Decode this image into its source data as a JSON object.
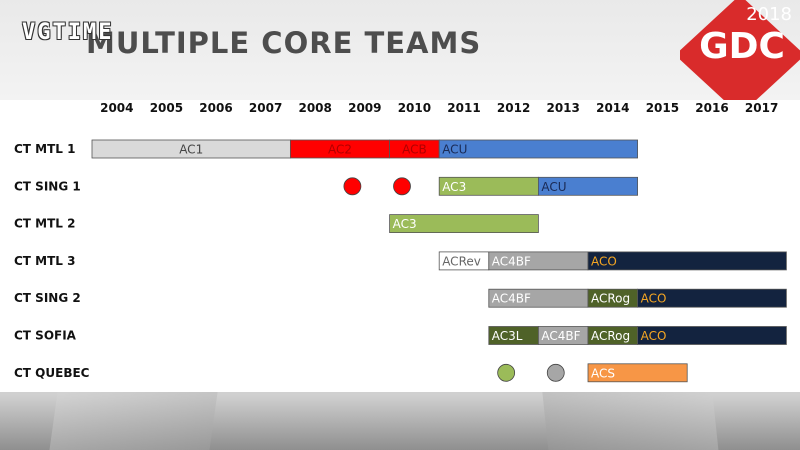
{
  "page": {
    "title": "MULTIPLE CORE TEAMS",
    "watermark": "VGTIME",
    "logo": {
      "year": "2018",
      "text": "GDC",
      "color": "#d92b2b"
    }
  },
  "chart_data": {
    "type": "gantt",
    "title": "MULTIPLE CORE TEAMS",
    "x_categories": [
      "2004",
      "2005",
      "2006",
      "2007",
      "2008",
      "2009",
      "2010",
      "2011",
      "2012",
      "2013",
      "2014",
      "2015",
      "2016",
      "2017"
    ],
    "rows": [
      {
        "name": "CT MTL 1",
        "bars": [
          {
            "label": "AC1",
            "start": 2004,
            "end": 2008,
            "color": "#d9d9d9",
            "text_color": "#444444"
          },
          {
            "label": "AC2",
            "start": 2008,
            "end": 2010,
            "color": "#ff0000",
            "text_color": "#b00000"
          },
          {
            "label": "ACB",
            "start": 2010,
            "end": 2011,
            "color": "#ff0000",
            "text_color": "#b00000"
          },
          {
            "label": "ACU",
            "start": 2011,
            "end": 2015,
            "color": "#4a7fd0",
            "text_color": "#1a2a55"
          }
        ],
        "dots": []
      },
      {
        "name": "CT SING 1",
        "bars": [
          {
            "label": "AC3",
            "start": 2011,
            "end": 2013,
            "color": "#9bbb59",
            "text_color": "#ffffff"
          },
          {
            "label": "ACU",
            "start": 2013,
            "end": 2015,
            "color": "#4a7fd0",
            "text_color": "#1a2a55"
          }
        ],
        "dots": [
          {
            "x": 2009.25,
            "color": "#ff0000"
          },
          {
            "x": 2010.25,
            "color": "#ff0000"
          }
        ]
      },
      {
        "name": "CT MTL 2",
        "bars": [
          {
            "label": "AC3",
            "start": 2010,
            "end": 2013,
            "color": "#9bbb59",
            "text_color": "#ffffff"
          }
        ],
        "dots": []
      },
      {
        "name": "CT MTL 3",
        "bars": [
          {
            "label": "ACRev",
            "start": 2011,
            "end": 2012,
            "color": "#ffffff",
            "text_color": "#666666"
          },
          {
            "label": "AC4BF",
            "start": 2012,
            "end": 2014,
            "color": "#a6a6a6",
            "text_color": "#ffffff"
          },
          {
            "label": "ACO",
            "start": 2014,
            "end": 2018,
            "color": "#13233f",
            "text_color": "#f5a623"
          }
        ],
        "dots": []
      },
      {
        "name": "CT SING 2",
        "bars": [
          {
            "label": "AC4BF",
            "start": 2012,
            "end": 2014,
            "color": "#a6a6a6",
            "text_color": "#ffffff"
          },
          {
            "label": "ACRog",
            "start": 2014,
            "end": 2015,
            "color": "#4f6228",
            "text_color": "#ffffff"
          },
          {
            "label": "ACO",
            "start": 2015,
            "end": 2018,
            "color": "#13233f",
            "text_color": "#f5a623"
          }
        ],
        "dots": []
      },
      {
        "name": "CT SOFIA",
        "bars": [
          {
            "label": "AC3L",
            "start": 2012,
            "end": 2013,
            "color": "#4f6228",
            "text_color": "#ffffff"
          },
          {
            "label": "AC4BF",
            "start": 2013,
            "end": 2014,
            "color": "#a6a6a6",
            "text_color": "#ffffff"
          },
          {
            "label": "ACRog",
            "start": 2014,
            "end": 2015,
            "color": "#4f6228",
            "text_color": "#ffffff"
          },
          {
            "label": "ACO",
            "start": 2015,
            "end": 2018,
            "color": "#13233f",
            "text_color": "#f5a623"
          }
        ],
        "dots": []
      },
      {
        "name": "CT QUEBEC",
        "bars": [
          {
            "label": "ACS",
            "start": 2014,
            "end": 2016,
            "color": "#f79646",
            "text_color": "#ffffff"
          }
        ],
        "dots": [
          {
            "x": 2012.35,
            "color": "#9bbb59"
          },
          {
            "x": 2013.35,
            "color": "#a6a6a6"
          }
        ]
      }
    ]
  }
}
